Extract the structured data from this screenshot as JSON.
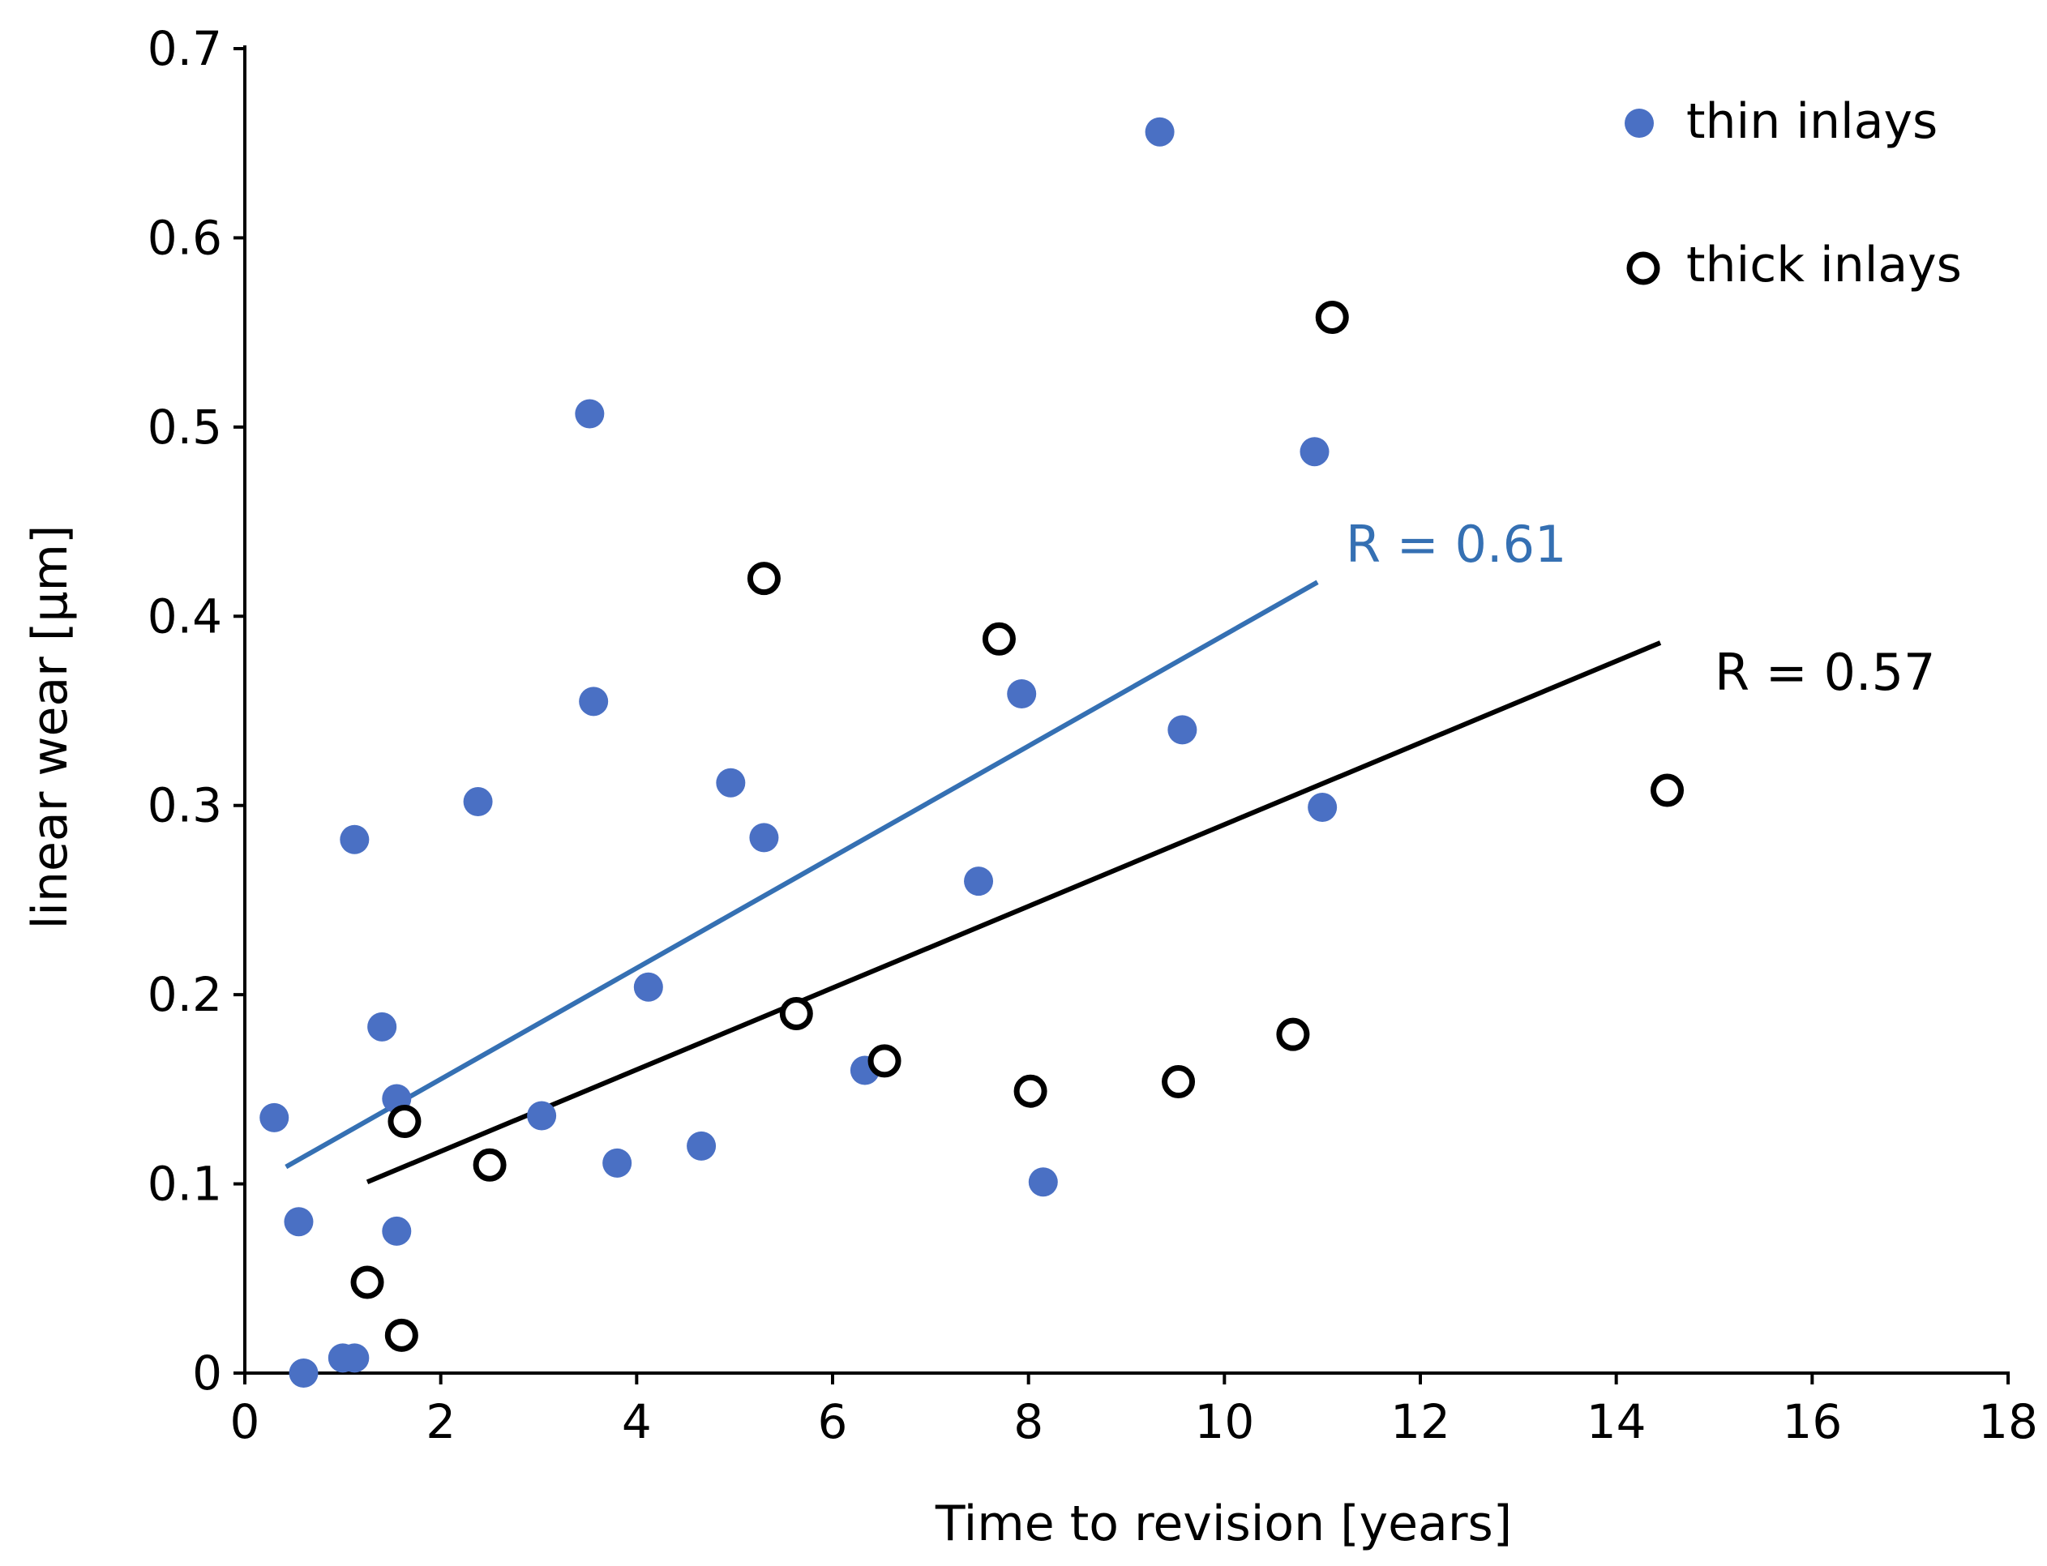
{
  "chart_data": {
    "type": "scatter",
    "title": "",
    "xlabel": "Time to revision [years]",
    "ylabel": "linear wear [μm]",
    "xlim": [
      0,
      18
    ],
    "ylim": [
      0,
      0.7
    ],
    "x_ticks": [
      0,
      2,
      4,
      6,
      8,
      10,
      12,
      14,
      16,
      18
    ],
    "x_tick_labels": [
      "0",
      "2",
      "4",
      "6",
      "8",
      "10",
      "12",
      "14",
      "16",
      "18"
    ],
    "y_ticks": [
      0,
      0.1,
      0.2,
      0.3,
      0.4,
      0.5,
      0.6,
      0.7
    ],
    "y_tick_labels": [
      "0",
      "0.1",
      "0.2",
      "0.3",
      "0.4",
      "0.5",
      "0.6",
      "0.7"
    ],
    "grid": false,
    "legend_position": "top-right",
    "series": [
      {
        "name": "thin inlays",
        "marker": "filled-circle",
        "color": "#4a70c4",
        "points": [
          {
            "x": 0.3,
            "y": 0.135
          },
          {
            "x": 0.55,
            "y": 0.08
          },
          {
            "x": 0.6,
            "y": 0.0
          },
          {
            "x": 1.0,
            "y": 0.008
          },
          {
            "x": 1.12,
            "y": 0.008
          },
          {
            "x": 1.12,
            "y": 0.282
          },
          {
            "x": 1.4,
            "y": 0.183
          },
          {
            "x": 1.55,
            "y": 0.145
          },
          {
            "x": 1.55,
            "y": 0.075
          },
          {
            "x": 2.38,
            "y": 0.302
          },
          {
            "x": 3.03,
            "y": 0.136
          },
          {
            "x": 3.52,
            "y": 0.507
          },
          {
            "x": 3.56,
            "y": 0.355
          },
          {
            "x": 3.8,
            "y": 0.111
          },
          {
            "x": 4.12,
            "y": 0.204
          },
          {
            "x": 4.66,
            "y": 0.12
          },
          {
            "x": 4.96,
            "y": 0.312
          },
          {
            "x": 5.3,
            "y": 0.283
          },
          {
            "x": 6.33,
            "y": 0.16
          },
          {
            "x": 7.49,
            "y": 0.26
          },
          {
            "x": 7.93,
            "y": 0.359
          },
          {
            "x": 8.15,
            "y": 0.101
          },
          {
            "x": 9.34,
            "y": 0.656
          },
          {
            "x": 9.57,
            "y": 0.34
          },
          {
            "x": 10.92,
            "y": 0.487
          },
          {
            "x": 11.0,
            "y": 0.299
          }
        ]
      },
      {
        "name": "thick inlays",
        "marker": "open-circle",
        "color": "#000000",
        "points": [
          {
            "x": 1.25,
            "y": 0.048
          },
          {
            "x": 1.6,
            "y": 0.02
          },
          {
            "x": 1.63,
            "y": 0.133
          },
          {
            "x": 2.5,
            "y": 0.11
          },
          {
            "x": 5.3,
            "y": 0.42
          },
          {
            "x": 5.63,
            "y": 0.19
          },
          {
            "x": 6.53,
            "y": 0.165
          },
          {
            "x": 7.7,
            "y": 0.388
          },
          {
            "x": 8.02,
            "y": 0.149
          },
          {
            "x": 9.53,
            "y": 0.154
          },
          {
            "x": 10.7,
            "y": 0.179
          },
          {
            "x": 11.1,
            "y": 0.558
          },
          {
            "x": 14.52,
            "y": 0.308
          }
        ]
      }
    ],
    "trend_lines": [
      {
        "series": "thin inlays",
        "color": "#3570b3",
        "x": [
          0.42,
          10.95
        ],
        "y": [
          0.109,
          0.418
        ],
        "label": "R = 0.61"
      },
      {
        "series": "thick inlays",
        "color": "#000000",
        "x": [
          1.25,
          14.45
        ],
        "y": [
          0.101,
          0.386
        ],
        "label": "R = 0.57"
      }
    ]
  }
}
